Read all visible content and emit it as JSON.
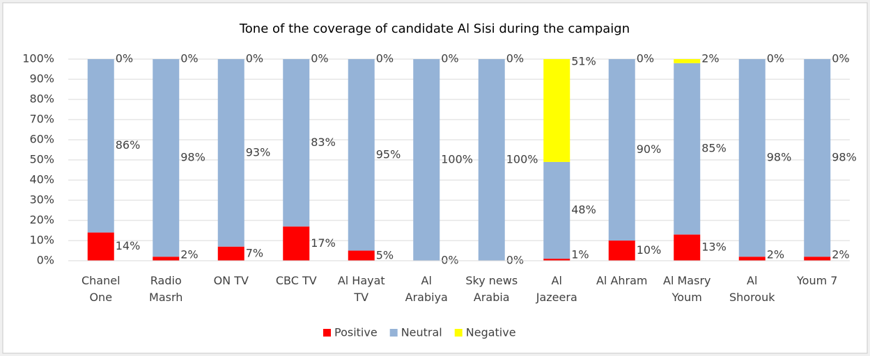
{
  "chart_data": {
    "type": "stacked_bar",
    "title": "Tone of the coverage of candidate Al Sisi during the campaign",
    "categories": [
      "Chanel One",
      "Radio Masrh",
      "ON TV",
      "CBC TV",
      "Al Hayat TV",
      "Al Arabiya",
      "Sky news Arabia",
      "Al Jazeera",
      "Al Ahram",
      "Al Masry Youm",
      "Al Shorouk",
      "Youm 7"
    ],
    "series": [
      {
        "name": "Positive",
        "color": "#ff0000",
        "values": [
          14,
          2,
          7,
          17,
          5,
          0,
          0,
          1,
          10,
          13,
          2,
          2
        ],
        "value_labels": [
          "14%",
          "2%",
          "7%",
          "17%",
          "5%",
          "0%",
          "0%",
          "1%",
          "10%",
          "13%",
          "2%",
          "2%"
        ]
      },
      {
        "name": "Neutral",
        "color": "#95b3d7",
        "values": [
          86,
          98,
          93,
          83,
          95,
          100,
          100,
          48,
          90,
          85,
          98,
          98
        ],
        "value_labels": [
          "86%",
          "98%",
          "93%",
          "83%",
          "95%",
          "100%",
          "100%",
          "48%",
          "90%",
          "85%",
          "98%",
          "98%"
        ]
      },
      {
        "name": "Negative",
        "color": "#ffff00",
        "values": [
          0,
          0,
          0,
          0,
          0,
          0,
          0,
          51,
          0,
          2,
          0,
          0
        ],
        "value_labels": [
          "0%",
          "0%",
          "0%",
          "0%",
          "0%",
          "0%",
          "0%",
          "51%",
          "0%",
          "2%",
          "0%",
          "0%"
        ]
      }
    ],
    "ylim": [
      0,
      100
    ],
    "yticks": [
      {
        "value": 0,
        "label": "0%"
      },
      {
        "value": 10,
        "label": "10%"
      },
      {
        "value": 20,
        "label": "20%"
      },
      {
        "value": 30,
        "label": "30%"
      },
      {
        "value": 40,
        "label": "40%"
      },
      {
        "value": 50,
        "label": "50%"
      },
      {
        "value": 60,
        "label": "60%"
      },
      {
        "value": 70,
        "label": "70%"
      },
      {
        "value": 80,
        "label": "80%"
      },
      {
        "value": 90,
        "label": "90%"
      },
      {
        "value": 100,
        "label": "100%"
      }
    ],
    "grid": true,
    "legend": "bottom"
  }
}
